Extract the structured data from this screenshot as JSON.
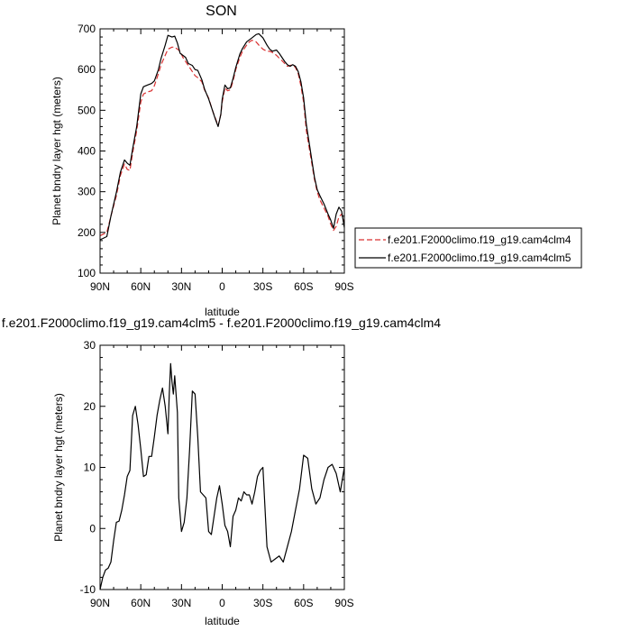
{
  "chart_data": [
    {
      "type": "line",
      "title": "SON",
      "xlabel": "latitude",
      "ylabel": "Planet bndry layer hgt (meters)",
      "xlim": [
        90,
        -90
      ],
      "ylim": [
        100,
        700
      ],
      "x_ticks": [
        90,
        60,
        30,
        0,
        -30,
        -60,
        -90
      ],
      "x_tick_labels": [
        "90N",
        "60N",
        "30N",
        "0",
        "30S",
        "60S",
        "90S"
      ],
      "y_ticks": [
        100,
        200,
        300,
        400,
        500,
        600,
        700
      ],
      "y_tick_labels": [
        "100",
        "200",
        "300",
        "400",
        "500",
        "600",
        "700"
      ],
      "legend_position": "right",
      "series": [
        {
          "name": "f.e201.F2000climo.f19_g19.cam4clm4",
          "color": "#d93030",
          "dash": "dashed",
          "x": [
            90,
            88,
            85,
            82,
            78,
            75,
            72,
            70,
            68,
            66,
            63,
            60,
            58,
            55,
            52,
            50,
            47,
            45,
            42,
            40,
            37,
            35,
            33,
            31,
            29,
            27,
            25,
            22,
            20,
            18,
            15,
            13,
            10,
            7,
            5,
            3,
            1,
            0,
            -2,
            -4,
            -6,
            -8,
            -10,
            -13,
            -15,
            -18,
            -20,
            -22,
            -25,
            -27,
            -30,
            -33,
            -35,
            -37,
            -40,
            -42,
            -44,
            -46,
            -48,
            -50,
            -52,
            -54,
            -56,
            -58,
            -60,
            -62,
            -65,
            -68,
            -70,
            -72,
            -75,
            -78,
            -80,
            -82,
            -84,
            -86,
            -88,
            -90
          ],
          "y": [
            192,
            195,
            200,
            240,
            290,
            340,
            368,
            355,
            352,
            395,
            450,
            520,
            540,
            545,
            548,
            560,
            590,
            612,
            635,
            650,
            655,
            655,
            650,
            645,
            630,
            620,
            610,
            595,
            585,
            580,
            570,
            550,
            530,
            498,
            480,
            462,
            490,
            520,
            555,
            548,
            550,
            572,
            600,
            630,
            645,
            660,
            668,
            672,
            668,
            660,
            650,
            645,
            645,
            642,
            635,
            628,
            622,
            615,
            608,
            610,
            612,
            605,
            590,
            560,
            520,
            450,
            390,
            330,
            300,
            280,
            260,
            240,
            220,
            205,
            215,
            238,
            245,
            222
          ]
        },
        {
          "name": "f.e201.F2000climo.f19_g19.cam4clm5",
          "color": "#000000",
          "dash": "solid",
          "x": [
            90,
            88,
            85,
            82,
            78,
            75,
            72,
            70,
            68,
            66,
            63,
            60,
            58,
            55,
            52,
            50,
            47,
            45,
            42,
            40,
            37,
            35,
            33,
            31,
            29,
            27,
            25,
            22,
            20,
            18,
            15,
            13,
            10,
            7,
            5,
            3,
            1,
            0,
            -2,
            -4,
            -6,
            -8,
            -10,
            -13,
            -15,
            -18,
            -20,
            -22,
            -25,
            -27,
            -30,
            -33,
            -35,
            -37,
            -40,
            -42,
            -44,
            -46,
            -48,
            -50,
            -52,
            -54,
            -56,
            -58,
            -60,
            -62,
            -65,
            -68,
            -70,
            -72,
            -75,
            -78,
            -80,
            -82,
            -84,
            -86,
            -88,
            -90
          ],
          "y": [
            182,
            185,
            190,
            240,
            298,
            348,
            378,
            370,
            365,
            405,
            460,
            540,
            558,
            562,
            566,
            572,
            600,
            628,
            660,
            684,
            680,
            682,
            665,
            640,
            635,
            630,
            615,
            610,
            600,
            598,
            575,
            552,
            528,
            498,
            478,
            460,
            490,
            527,
            562,
            553,
            555,
            578,
            605,
            638,
            652,
            668,
            673,
            678,
            686,
            688,
            678,
            660,
            650,
            645,
            648,
            640,
            630,
            620,
            612,
            608,
            612,
            608,
            595,
            570,
            530,
            465,
            400,
            335,
            305,
            290,
            270,
            245,
            230,
            210,
            245,
            262,
            252,
            212
          ]
        }
      ]
    },
    {
      "type": "line",
      "title": "f.e201.F2000climo.f19_g19.cam4clm5 - f.e201.F2000climo.f19_g19.cam4clm4",
      "xlabel": "latitude",
      "ylabel": "Planet bndry layer hgt (meters)",
      "xlim": [
        90,
        -90
      ],
      "ylim": [
        -10,
        30
      ],
      "x_ticks": [
        90,
        60,
        30,
        0,
        -30,
        -60,
        -90
      ],
      "x_tick_labels": [
        "90N",
        "60N",
        "30N",
        "0",
        "30S",
        "60S",
        "90S"
      ],
      "y_ticks": [
        -10,
        0,
        10,
        20,
        30
      ],
      "y_tick_labels": [
        "-10",
        "0",
        "10",
        "20",
        "30"
      ],
      "series": [
        {
          "name": "",
          "color": "#000000",
          "dash": "solid",
          "x": [
            90,
            88,
            86,
            84,
            82,
            80,
            78,
            76,
            74,
            72,
            70,
            68,
            66,
            64,
            62,
            60,
            58,
            56,
            54,
            52,
            50,
            48,
            46,
            44,
            42,
            40,
            39,
            38,
            37,
            36,
            35,
            33,
            32,
            30,
            28,
            26,
            24,
            22,
            20,
            18,
            16,
            14,
            12,
            10,
            8,
            6,
            4,
            2,
            0,
            -2,
            -4,
            -6,
            -8,
            -10,
            -12,
            -14,
            -16,
            -18,
            -20,
            -22,
            -24,
            -26,
            -28,
            -30,
            -33,
            -36,
            -39,
            -42,
            -45,
            -48,
            -51,
            -54,
            -57,
            -60,
            -63,
            -66,
            -69,
            -72,
            -75,
            -78,
            -81,
            -84,
            -87,
            -90
          ],
          "y": [
            -10,
            -8,
            -6.8,
            -6.5,
            -5.5,
            -2,
            1,
            1.2,
            3,
            5.5,
            8.5,
            9.5,
            18.5,
            20,
            17,
            13,
            8.5,
            8.8,
            11.8,
            11.8,
            15,
            18.5,
            21,
            23,
            20,
            15.5,
            22,
            27,
            24,
            22,
            25,
            19,
            5,
            -0.5,
            1,
            5,
            13,
            22.5,
            22,
            15,
            6,
            5.5,
            5,
            -0.5,
            -1,
            2,
            5,
            7,
            4,
            0.5,
            -0.5,
            -3,
            2,
            3,
            5,
            4.5,
            6,
            5.5,
            5.5,
            4,
            6,
            8.5,
            9.5,
            10,
            -3,
            -5.5,
            -5,
            -4.5,
            -5.5,
            -3,
            -0.5,
            3,
            6.5,
            12,
            11.5,
            6.5,
            4,
            5,
            8,
            10,
            10.5,
            9,
            6,
            10
          ]
        }
      ]
    }
  ]
}
